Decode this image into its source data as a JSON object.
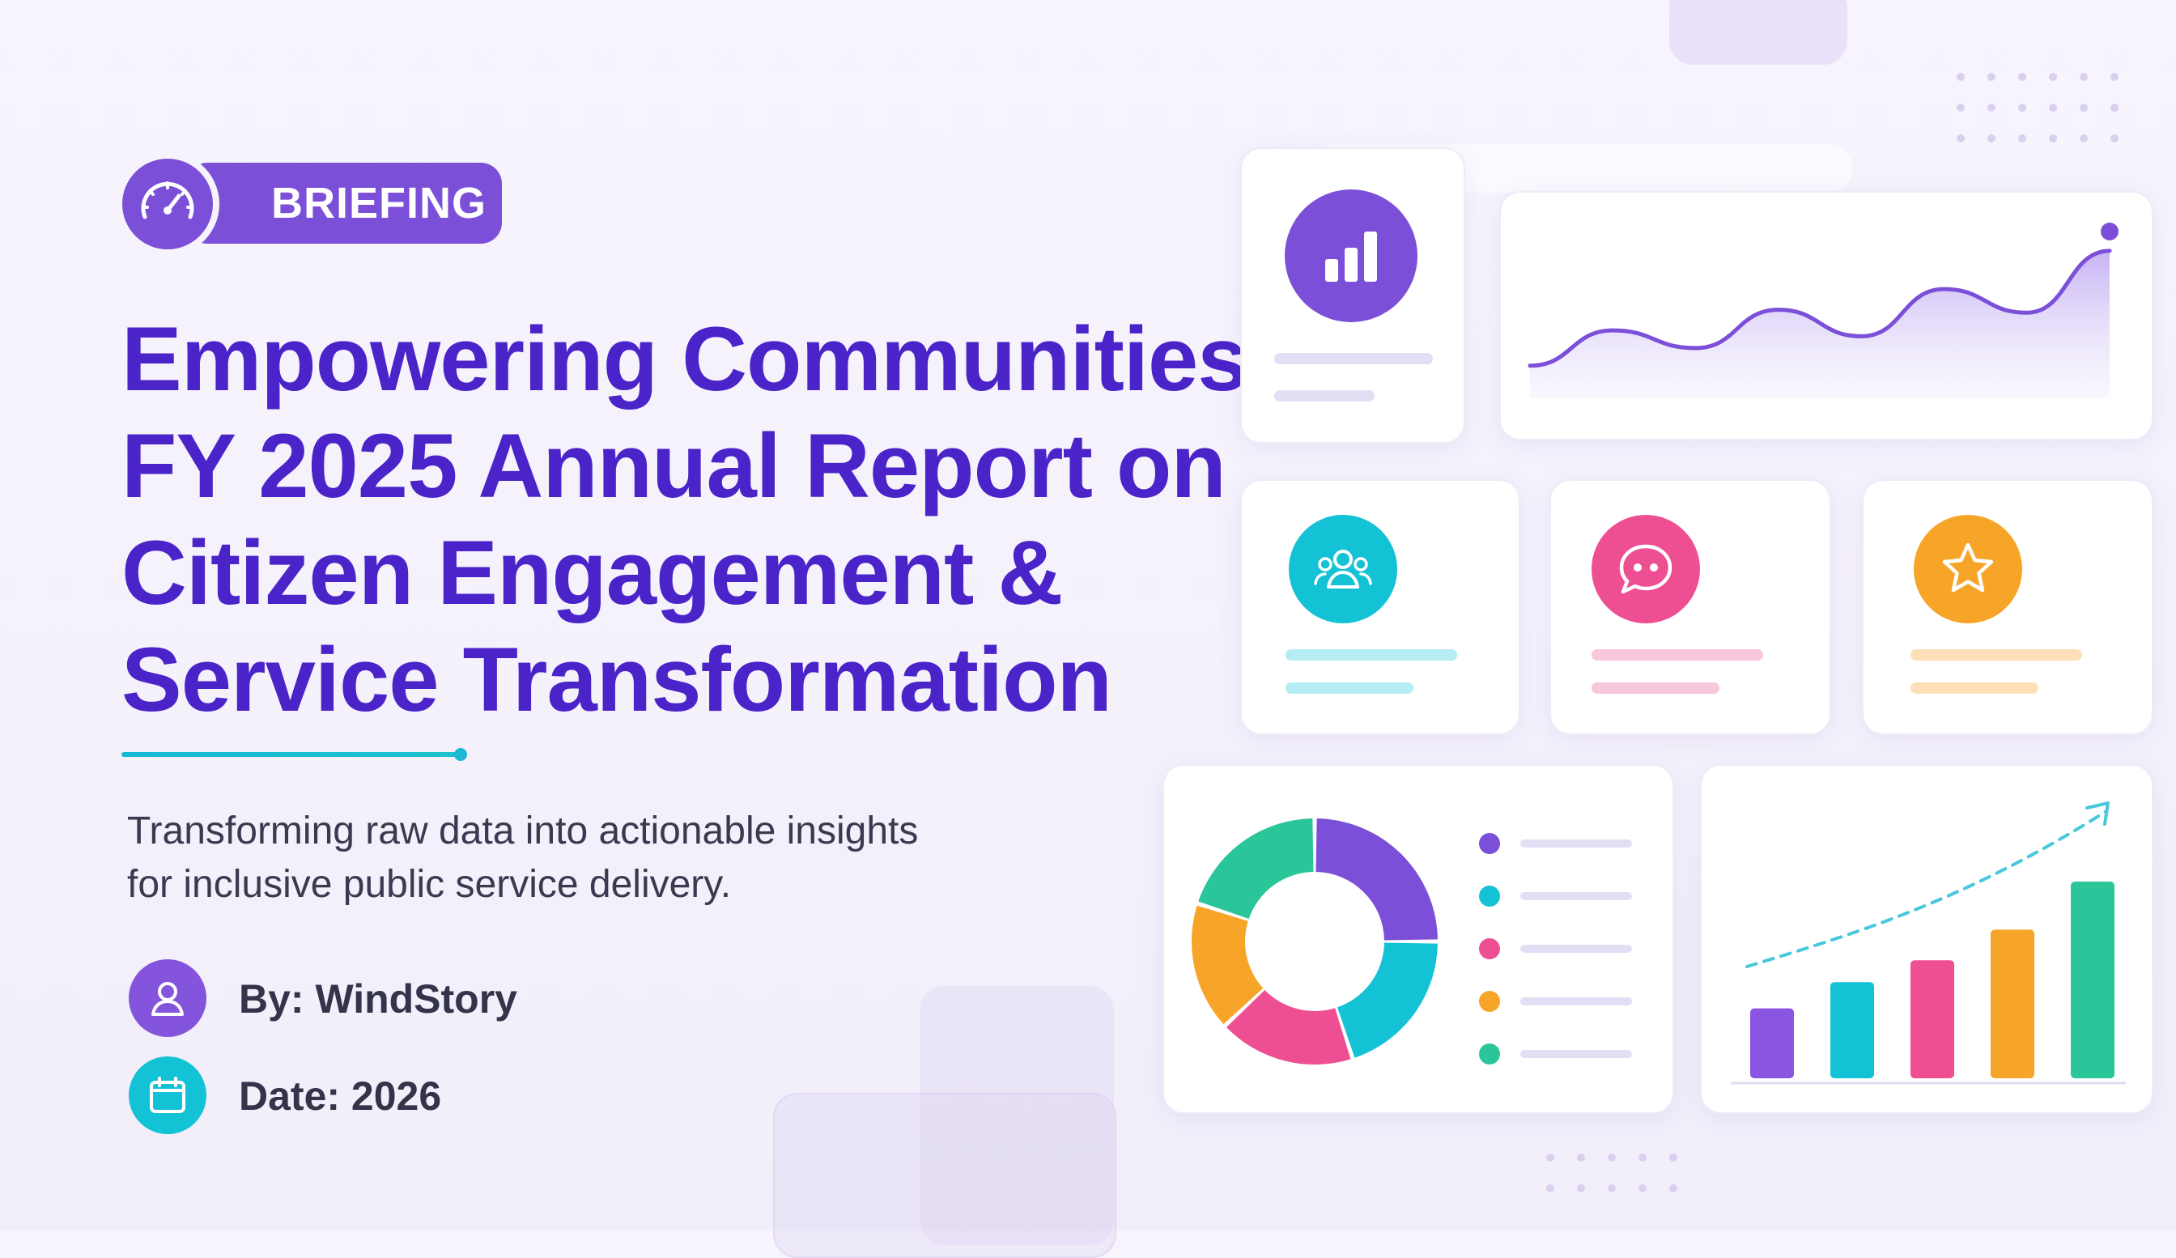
{
  "badge": {
    "label": "BRIEFING",
    "icon": "speedometer-icon"
  },
  "title": {
    "line1": "Empowering Communities:",
    "line2": "FY 2025 Annual Report on",
    "line3": "Citizen Engagement &",
    "line4": "Service Transformation"
  },
  "subtitle": {
    "line1": "Transforming raw data into actionable insights",
    "line2": "for inclusive public service delivery."
  },
  "meta": {
    "author": {
      "label": "By: WindStory",
      "icon": "user-icon"
    },
    "date": {
      "label": "Date: 2026",
      "icon": "calendar-icon"
    }
  },
  "colors": {
    "title": "#4a24c9",
    "purple": "#7b4fd8",
    "cyan": "#14c2d6",
    "pink": "#ee4f93",
    "orange": "#f7a528",
    "green": "#2bc59a"
  },
  "dashboard_icons": [
    "bar-chart-icon",
    "people-icon",
    "chat-bubble-icon",
    "star-icon"
  ],
  "chart_data": [
    {
      "type": "area",
      "series": [
        {
          "values": [
            10,
            34,
            22,
            48,
            30,
            62,
            46,
            88
          ]
        }
      ]
    },
    {
      "type": "pie",
      "values": [
        25,
        20,
        18,
        17,
        20
      ],
      "colors": [
        "#7b4fd8",
        "#14c2d6",
        "#ee4f93",
        "#f7a528",
        "#2bc59a"
      ]
    },
    {
      "type": "bar",
      "values": [
        32,
        44,
        54,
        68,
        90
      ],
      "colors": [
        "#8a55e0",
        "#14c2d6",
        "#ee4f93",
        "#f7a528",
        "#2bc59a"
      ]
    }
  ]
}
